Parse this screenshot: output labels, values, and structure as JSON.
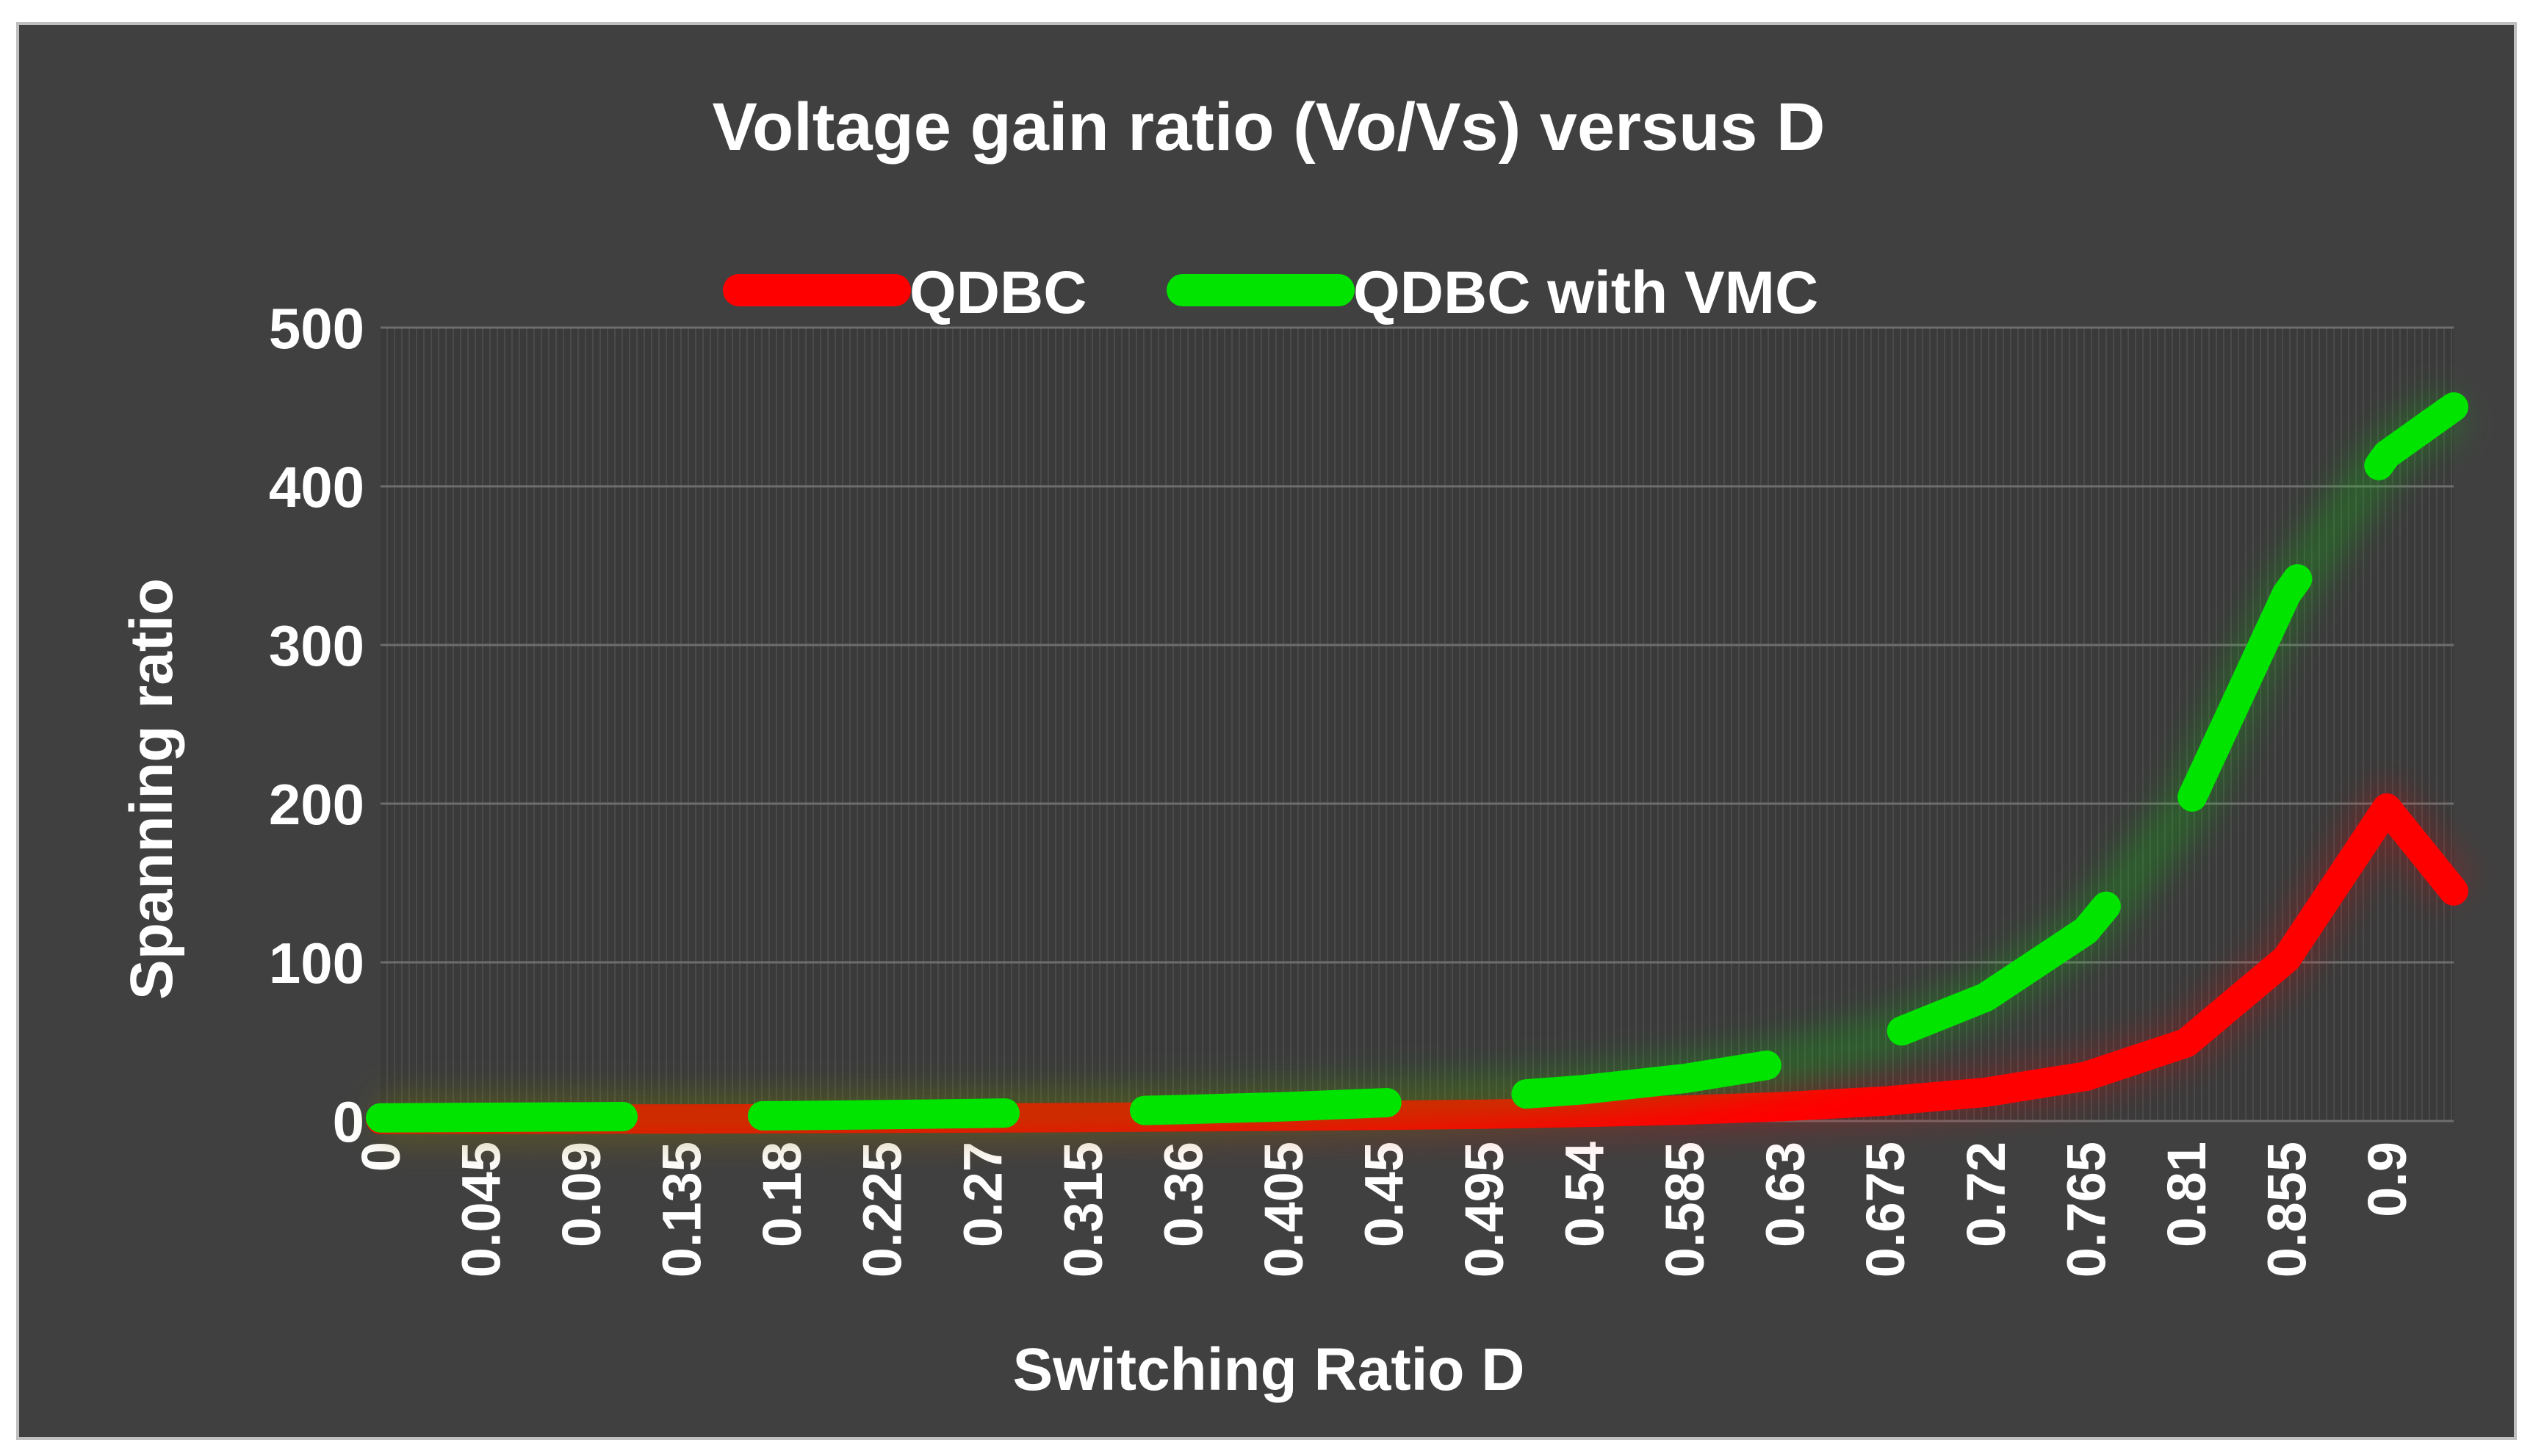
{
  "chart_data": {
    "type": "line",
    "title": "Voltage gain ratio (Vo/Vs) versus D",
    "xlabel": "Switching Ratio D",
    "ylabel": "Spanning ratio",
    "ylim": [
      0,
      500
    ],
    "yticks": [
      "0",
      "100",
      "200",
      "300",
      "400",
      "500"
    ],
    "xlim": [
      0,
      0.93
    ],
    "xticks": [
      "0",
      "0.045",
      "0.09",
      "0.135",
      "0.18",
      "0.225",
      "0.27",
      "0.315",
      "0.36",
      "0.405",
      "0.45",
      "0.495",
      "0.54",
      "0.585",
      "0.63",
      "0.675",
      "0.72",
      "0.765",
      "0.81",
      "0.855",
      "0.9"
    ],
    "grid": true,
    "legend_position": "top",
    "series": [
      {
        "name": "QDBC",
        "color": "#ff0000",
        "style": "solid",
        "x": [
          0,
          0.045,
          0.09,
          0.135,
          0.18,
          0.225,
          0.27,
          0.315,
          0.36,
          0.405,
          0.45,
          0.495,
          0.54,
          0.585,
          0.63,
          0.675,
          0.72,
          0.765,
          0.81,
          0.855,
          0.9,
          0.93
        ],
        "values": [
          1.0,
          1.1,
          1.2,
          1.3,
          1.5,
          1.7,
          1.9,
          2.2,
          2.6,
          3.0,
          3.6,
          4.3,
          5.4,
          6.9,
          9.1,
          12.6,
          18.1,
          28.2,
          49.2,
          102.3,
          197.2,
          145.0
        ]
      },
      {
        "name": "QDBC with VMC",
        "color": "#00e400",
        "style": "dashed",
        "x": [
          0,
          0.045,
          0.09,
          0.135,
          0.18,
          0.225,
          0.27,
          0.315,
          0.36,
          0.405,
          0.45,
          0.495,
          0.54,
          0.585,
          0.63,
          0.675,
          0.72,
          0.765,
          0.81,
          0.855,
          0.9,
          0.93
        ],
        "values": [
          2.0,
          2.3,
          2.6,
          3.0,
          3.4,
          4.0,
          4.8,
          5.8,
          7.2,
          9.0,
          11.5,
          15.0,
          19.8,
          26.8,
          37.0,
          52.6,
          78.0,
          120.0,
          196.0,
          332.0,
          420.0,
          450.0
        ]
      }
    ]
  }
}
